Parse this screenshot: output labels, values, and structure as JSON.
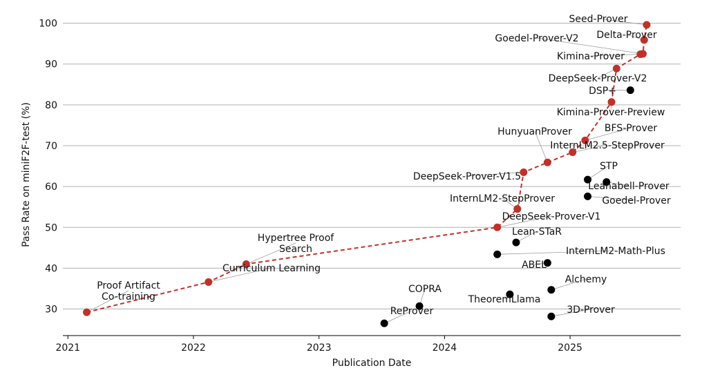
{
  "chart_data": {
    "type": "scatter",
    "title": "",
    "xlabel": "Publication Date",
    "ylabel": "Pass Rate on miniF2F-test (%)",
    "xlim": [
      2020.96,
      2025.88
    ],
    "ylim": [
      23.5,
      102.3
    ],
    "xticks": [
      2021,
      2022,
      2023,
      2024,
      2025
    ],
    "xtick_labels": [
      "2021",
      "2022",
      "2023",
      "2024",
      "2025"
    ],
    "yticks": [
      30,
      40,
      50,
      60,
      70,
      80,
      90,
      100
    ],
    "ytick_labels": [
      "30",
      "40",
      "50",
      "60",
      "70",
      "80",
      "90",
      "100"
    ],
    "grid": "horizontal",
    "frontier_color": "#c0312b",
    "other_color": "#000000",
    "frontier": [
      {
        "name": "Proof Artifact Co-training",
        "label_lines": [
          "Proof Artifact",
          "Co-training"
        ],
        "x": 2021.15,
        "y": 29.2
      },
      {
        "name": "Curriculum Learning",
        "label_lines": [
          "Curriculum Learning"
        ],
        "x": 2022.12,
        "y": 36.6
      },
      {
        "name": "Hypertree Proof Search",
        "label_lines": [
          "Hypertree Proof",
          "Search"
        ],
        "x": 2022.42,
        "y": 41.0
      },
      {
        "name": "DeepSeek-Prover-V1",
        "label_lines": [
          "DeepSeek-Prover-V1"
        ],
        "x": 2024.42,
        "y": 50.0
      },
      {
        "name": "InternLM2-StepProver",
        "label_lines": [
          "InternLM2-StepProver"
        ],
        "x": 2024.58,
        "y": 54.5
      },
      {
        "name": "DeepSeek-Prover-V1.5",
        "label_lines": [
          "DeepSeek-Prover-V1.5"
        ],
        "x": 2024.63,
        "y": 63.5
      },
      {
        "name": "HunyuanProver",
        "label_lines": [
          "HunyuanProver"
        ],
        "x": 2024.82,
        "y": 65.9
      },
      {
        "name": "InternLM2.5-StepProver",
        "label_lines": [
          "InternLM2.5-StepProver"
        ],
        "x": 2025.02,
        "y": 68.4
      },
      {
        "name": "BFS-Prover",
        "label_lines": [
          "BFS-Prover"
        ],
        "x": 2025.12,
        "y": 71.3
      },
      {
        "name": "Kimina-Prover-Preview",
        "label_lines": [
          "Kimina-Prover-Preview"
        ],
        "x": 2025.33,
        "y": 80.7
      },
      {
        "name": "DeepSeek-Prover-V2",
        "label_lines": [
          "DeepSeek-Prover-V2"
        ],
        "x": 2025.37,
        "y": 88.9
      },
      {
        "name": "Kimina-Prover",
        "label_lines": [
          "Kimina-Prover"
        ],
        "x": 2025.56,
        "y": 92.4
      },
      {
        "name": "Goedel-Prover-V2",
        "label_lines": [
          "Goedel-Prover-V2"
        ],
        "x": 2025.58,
        "y": 92.5
      },
      {
        "name": "Delta-Prover",
        "label_lines": [
          "Delta-Prover"
        ],
        "x": 2025.59,
        "y": 95.9
      },
      {
        "name": "Seed-Prover",
        "label_lines": [
          "Seed-Prover"
        ],
        "x": 2025.61,
        "y": 99.6
      }
    ],
    "others": [
      {
        "name": "ReProver",
        "x": 2023.52,
        "y": 26.5
      },
      {
        "name": "COPRA",
        "x": 2023.8,
        "y": 30.7
      },
      {
        "name": "TheoremLlama",
        "x": 2024.52,
        "y": 33.6
      },
      {
        "name": "Lean-STaR",
        "x": 2024.57,
        "y": 46.3
      },
      {
        "name": "InternLM2-Math-Plus",
        "x": 2024.42,
        "y": 43.4
      },
      {
        "name": "ABEL",
        "x": 2024.82,
        "y": 41.3
      },
      {
        "name": "Alchemy",
        "x": 2024.85,
        "y": 34.7
      },
      {
        "name": "3D-Prover",
        "x": 2024.85,
        "y": 28.2
      },
      {
        "name": "STP",
        "x": 2025.14,
        "y": 61.7
      },
      {
        "name": "Leanabell-Prover",
        "x": 2025.29,
        "y": 61.1
      },
      {
        "name": "Goedel-Prover",
        "x": 2025.14,
        "y": 57.6
      },
      {
        "name": "DSP+",
        "x": 2025.48,
        "y": 83.6
      }
    ]
  }
}
